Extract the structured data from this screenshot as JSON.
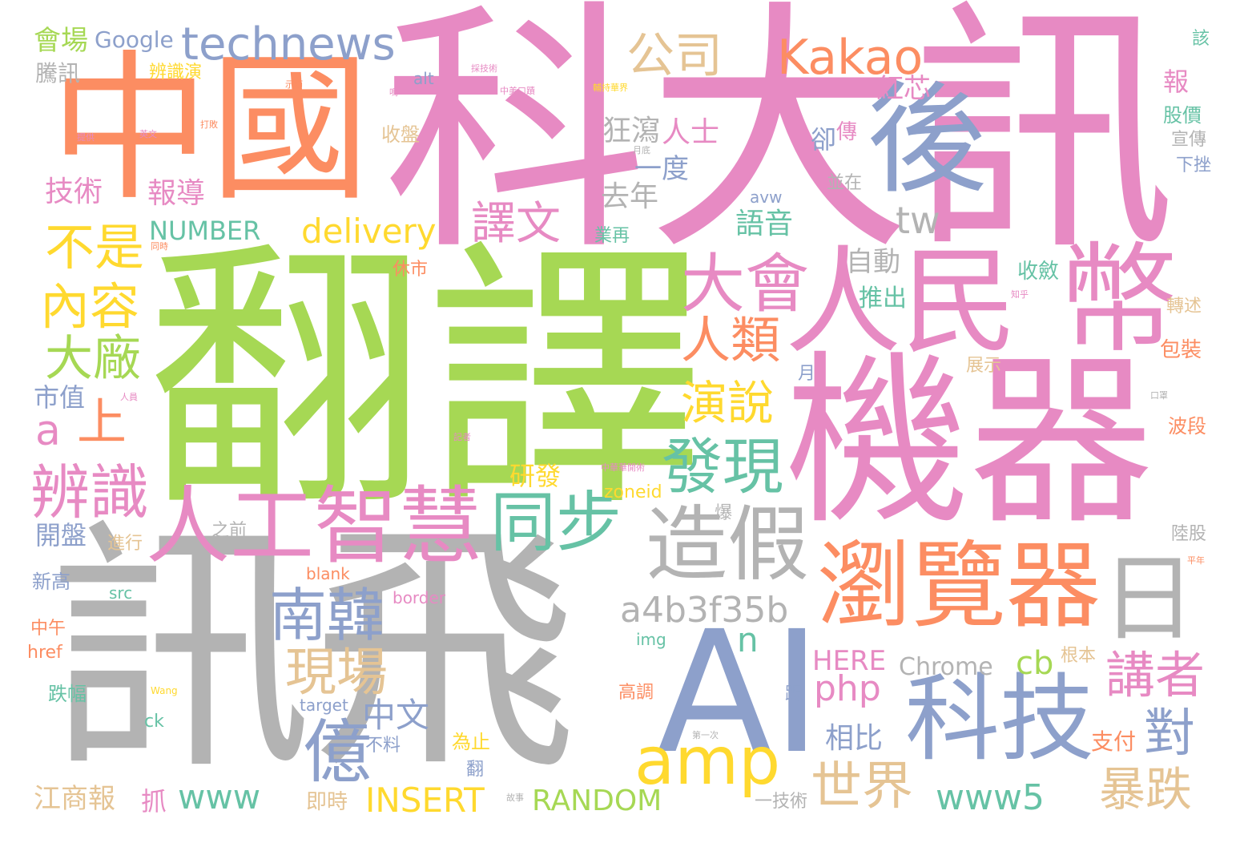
{
  "palette": {
    "orange": "#fc8d62",
    "pink": "#e78ac3",
    "green": "#a6d854",
    "gray": "#b3b3b3",
    "blue": "#8da0cb",
    "yellow": "#ffd92f",
    "tan": "#e5c494",
    "teal": "#66c2a5"
  },
  "words": [
    {
      "text": "翻譯",
      "color": "green"
    },
    {
      "text": "科大訊",
      "color": "pink"
    },
    {
      "text": "訊飛",
      "color": "gray"
    },
    {
      "text": "中國",
      "color": "orange"
    },
    {
      "text": "機器",
      "color": "pink"
    },
    {
      "text": "後",
      "color": "blue"
    },
    {
      "text": "AI",
      "color": "blue"
    },
    {
      "text": "人民",
      "color": "pink"
    },
    {
      "text": "幣",
      "color": "pink"
    },
    {
      "text": "瀏覽器",
      "color": "orange"
    },
    {
      "text": "人工智慧",
      "color": "pink"
    },
    {
      "text": "造假",
      "color": "gray"
    },
    {
      "text": "科技",
      "color": "blue"
    },
    {
      "text": "technews",
      "color": "blue"
    },
    {
      "text": "Kakao",
      "color": "orange"
    },
    {
      "text": "公司",
      "color": "tan"
    },
    {
      "text": "同步",
      "color": "teal"
    },
    {
      "text": "大會",
      "color": "pink"
    },
    {
      "text": "日",
      "color": "gray"
    },
    {
      "text": "amp",
      "color": "yellow"
    },
    {
      "text": "辨識",
      "color": "pink"
    },
    {
      "text": "南韓",
      "color": "blue"
    },
    {
      "text": "發現",
      "color": "teal"
    },
    {
      "text": "億",
      "color": "blue"
    },
    {
      "text": "現場",
      "color": "tan"
    },
    {
      "text": "內容",
      "color": "yellow"
    },
    {
      "text": "不是",
      "color": "yellow"
    },
    {
      "text": "大廠",
      "color": "green"
    },
    {
      "text": "人類",
      "color": "orange"
    },
    {
      "text": "演說",
      "color": "yellow"
    },
    {
      "text": "譯文",
      "color": "pink"
    },
    {
      "text": "a4b3f35b",
      "color": "gray"
    },
    {
      "text": "講者",
      "color": "pink"
    },
    {
      "text": "對",
      "color": "blue"
    },
    {
      "text": "世界",
      "color": "tan"
    },
    {
      "text": "www5",
      "color": "teal"
    },
    {
      "text": "暴跌",
      "color": "tan"
    },
    {
      "text": "delivery",
      "color": "yellow"
    },
    {
      "text": "php",
      "color": "pink"
    },
    {
      "text": "tw",
      "color": "gray"
    },
    {
      "text": "a",
      "color": "pink"
    },
    {
      "text": "上",
      "color": "orange"
    },
    {
      "text": "NUMBER",
      "color": "teal"
    },
    {
      "text": "INSERT",
      "color": "yellow"
    },
    {
      "text": "RANDOM",
      "color": "green"
    },
    {
      "text": "www",
      "color": "teal"
    },
    {
      "text": "中文",
      "color": "blue"
    },
    {
      "text": "n",
      "color": "teal"
    },
    {
      "text": "cb",
      "color": "green"
    },
    {
      "text": "HERE",
      "color": "pink"
    },
    {
      "text": "Chrome",
      "color": "gray"
    },
    {
      "text": "Google",
      "color": "blue"
    },
    {
      "text": "會場",
      "color": "green"
    },
    {
      "text": "技術",
      "color": "pink"
    },
    {
      "text": "報導",
      "color": "pink"
    },
    {
      "text": "人士",
      "color": "pink"
    },
    {
      "text": "狂瀉",
      "color": "gray"
    },
    {
      "text": "一度",
      "color": "blue"
    },
    {
      "text": "去年",
      "color": "gray"
    },
    {
      "text": "紅芯",
      "color": "pink"
    },
    {
      "text": "語音",
      "color": "teal"
    },
    {
      "text": "自動",
      "color": "gray"
    },
    {
      "text": "推出",
      "color": "teal"
    },
    {
      "text": "相比",
      "color": "blue"
    },
    {
      "text": "市值",
      "color": "blue"
    },
    {
      "text": "開盤",
      "color": "blue"
    },
    {
      "text": "江商報",
      "color": "tan"
    },
    {
      "text": "研發",
      "color": "yellow"
    },
    {
      "text": "騰訊",
      "color": "gray"
    },
    {
      "text": "辨識演",
      "color": "yellow"
    },
    {
      "text": "報",
      "color": "pink"
    },
    {
      "text": "股價",
      "color": "teal"
    },
    {
      "text": "宣傳",
      "color": "gray"
    },
    {
      "text": "下挫",
      "color": "blue"
    },
    {
      "text": "轉述",
      "color": "tan"
    },
    {
      "text": "包裝",
      "color": "orange"
    },
    {
      "text": "展示",
      "color": "tan"
    },
    {
      "text": "波段",
      "color": "orange"
    },
    {
      "text": "陸股",
      "color": "gray"
    },
    {
      "text": "根本",
      "color": "tan"
    },
    {
      "text": "收斂",
      "color": "teal"
    },
    {
      "text": "支付",
      "color": "orange"
    },
    {
      "text": "收盤",
      "color": "tan"
    },
    {
      "text": "休市",
      "color": "orange"
    },
    {
      "text": "卻",
      "color": "blue"
    },
    {
      "text": "傳",
      "color": "pink"
    },
    {
      "text": "並在",
      "color": "gray"
    },
    {
      "text": "業再",
      "color": "teal"
    },
    {
      "text": "新高",
      "color": "blue"
    },
    {
      "text": "中午",
      "color": "orange"
    },
    {
      "text": "href",
      "color": "orange"
    },
    {
      "text": "跌幅",
      "color": "teal"
    },
    {
      "text": "抓",
      "color": "pink"
    },
    {
      "text": "即時",
      "color": "tan"
    },
    {
      "text": "一技術",
      "color": "gray"
    },
    {
      "text": "不料",
      "color": "blue"
    },
    {
      "text": "為止",
      "color": "yellow"
    },
    {
      "text": "高調",
      "color": "orange"
    },
    {
      "text": "進行",
      "color": "tan"
    },
    {
      "text": "之前",
      "color": "gray"
    },
    {
      "text": "alt",
      "color": "blue"
    },
    {
      "text": "avw",
      "color": "blue"
    },
    {
      "text": "zoneid",
      "color": "yellow"
    },
    {
      "text": "blank",
      "color": "orange"
    },
    {
      "text": "src",
      "color": "teal"
    },
    {
      "text": "border",
      "color": "pink"
    },
    {
      "text": "img",
      "color": "teal"
    },
    {
      "text": "target",
      "color": "blue"
    },
    {
      "text": "ck",
      "color": "teal"
    },
    {
      "text": "爆",
      "color": "gray"
    },
    {
      "text": "月",
      "color": "blue"
    },
    {
      "text": "翻",
      "color": "blue"
    },
    {
      "text": "踢",
      "color": "blue"
    },
    {
      "text": "該",
      "color": "teal"
    },
    {
      "text": "Wang",
      "color": "yellow"
    },
    {
      "text": "中美口蹟",
      "color": "pink"
    },
    {
      "text": "採技術",
      "color": "pink"
    },
    {
      "text": "輔持華界",
      "color": "yellow"
    },
    {
      "text": "中華華開術",
      "color": "pink"
    },
    {
      "text": "第一次",
      "color": "gray"
    },
    {
      "text": "英文",
      "color": "pink"
    },
    {
      "text": "提供",
      "color": "pink"
    },
    {
      "text": "打敗",
      "color": "orange"
    },
    {
      "text": "示節",
      "color": "orange"
    },
    {
      "text": "記者",
      "color": "pink"
    },
    {
      "text": "故事",
      "color": "gray"
    },
    {
      "text": "知乎",
      "color": "pink"
    },
    {
      "text": "口罩",
      "color": "gray"
    },
    {
      "text": "同時",
      "color": "orange"
    },
    {
      "text": "人員",
      "color": "pink"
    },
    {
      "text": "平年",
      "color": "orange"
    },
    {
      "text": "月底",
      "color": "gray"
    },
    {
      "text": "嗎",
      "color": "pink"
    }
  ]
}
